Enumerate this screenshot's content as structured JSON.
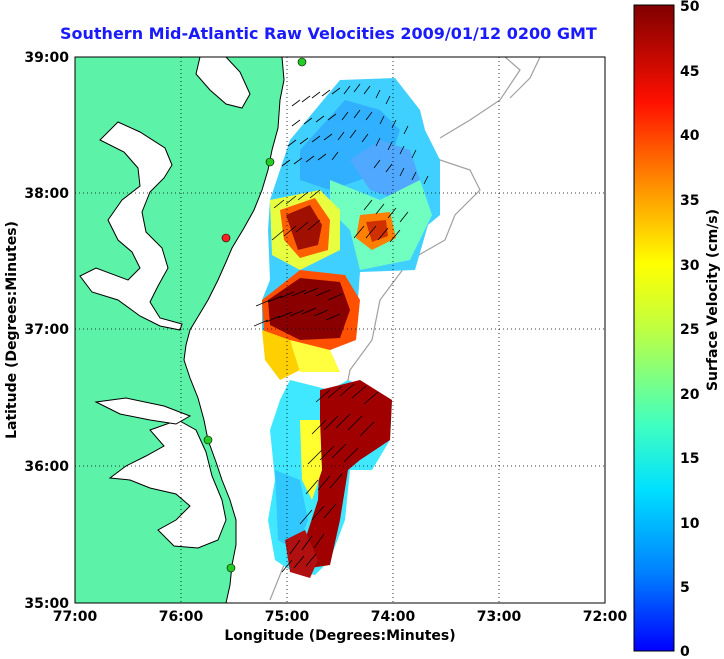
{
  "title": "Southern Mid-Atlantic Raw Velocities 2009/01/12 0200 GMT",
  "map": {
    "x_axis_label": "Longitude (Degrees:Minutes)",
    "y_axis_label": "Latitude (Degrees:Minutes)",
    "longitude_ticks": [
      "77:00",
      "76:00",
      "75:00",
      "74:00",
      "73:00",
      "72:00"
    ],
    "latitude_ticks": [
      "39:00",
      "38:00",
      "37:00",
      "36:00",
      "35:00"
    ],
    "longitude_range": [
      -77,
      -72
    ],
    "latitude_range": [
      35,
      39
    ],
    "grid": "dotted",
    "colors": {
      "land": "#5cf2a8",
      "coast": "#000000",
      "bathymetry": "#a0a0a0",
      "arrows": "#000000",
      "station": "#22cc22",
      "station_alt": "#ff2222"
    }
  },
  "colorbar": {
    "label": "Surface Velocity (cm/s)",
    "ticks": [
      "50",
      "45",
      "40",
      "35",
      "30",
      "25",
      "20",
      "15",
      "10",
      "5",
      "0"
    ],
    "min": 0,
    "max": 50,
    "colormap": "jet"
  }
}
